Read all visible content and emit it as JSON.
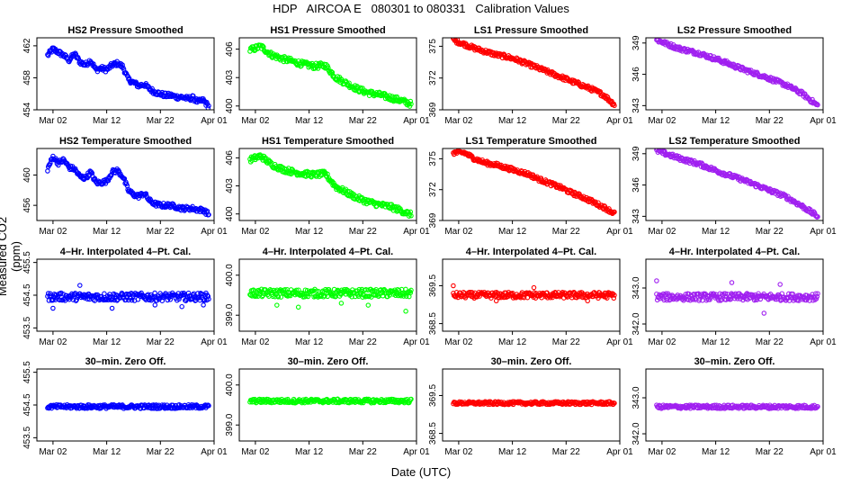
{
  "page": {
    "title": "HDP   AIRCOA E   080301 to 080331   Calibration Values",
    "xlabel": "Date (UTC)",
    "ylabel": "Measured CO2 (ppm)"
  },
  "colors": {
    "HS2": "#0000ff",
    "HS1": "#00ff00",
    "LS1": "#ff0000",
    "LS2": "#a020f0"
  },
  "chart_data": [
    {
      "id": "p-r0-c0",
      "type": "scatter",
      "title": "HS2 Pressure Smoothed",
      "series_color": "#0000ff",
      "xlim": [
        -2,
        31
      ],
      "x_ticks": [
        1,
        11,
        21,
        31
      ],
      "x_tick_labels": [
        "Mar 02",
        "Mar 12",
        "Mar 22",
        "Apr 01"
      ],
      "ylim": [
        454,
        463
      ],
      "y_ticks": [
        454,
        458,
        462
      ],
      "y_tick_labels": [
        "454",
        "458",
        "462"
      ],
      "profile": [
        [
          0,
          460.8
        ],
        [
          1,
          461.6
        ],
        [
          2,
          461.2
        ],
        [
          3,
          460.8
        ],
        [
          4,
          460.2
        ],
        [
          5,
          461.0
        ],
        [
          6,
          460.0
        ],
        [
          7,
          459.6
        ],
        [
          8,
          460.2
        ],
        [
          9,
          459.0
        ],
        [
          10,
          459.2
        ],
        [
          11,
          459.0
        ],
        [
          12,
          459.6
        ],
        [
          13,
          459.8
        ],
        [
          14,
          459.4
        ],
        [
          15,
          457.8
        ],
        [
          16,
          457.4
        ],
        [
          17,
          457.0
        ],
        [
          18,
          457.2
        ],
        [
          19,
          456.6
        ],
        [
          20,
          456.2
        ],
        [
          21,
          456.0
        ],
        [
          22,
          455.8
        ],
        [
          23,
          455.8
        ],
        [
          24,
          455.6
        ],
        [
          25,
          455.6
        ],
        [
          26,
          455.4
        ],
        [
          27,
          455.5
        ],
        [
          28,
          455.0
        ],
        [
          29,
          455.2
        ],
        [
          30,
          454.4
        ]
      ],
      "jitter": 0.3,
      "outliers": []
    },
    {
      "id": "p-r0-c1",
      "type": "scatter",
      "title": "HS1 Pressure Smoothed",
      "series_color": "#00ff00",
      "xlim": [
        -2,
        31
      ],
      "x_ticks": [
        1,
        11,
        21,
        31
      ],
      "x_tick_labels": [
        "Mar 02",
        "Mar 12",
        "Mar 22",
        "Apr 01"
      ],
      "ylim": [
        399.6,
        407.2
      ],
      "y_ticks": [
        400,
        403,
        406
      ],
      "y_tick_labels": [
        "400",
        "403",
        "406"
      ],
      "profile": [
        [
          0,
          405.9
        ],
        [
          2,
          406.3
        ],
        [
          4,
          405.4
        ],
        [
          6,
          405.0
        ],
        [
          8,
          404.7
        ],
        [
          10,
          404.4
        ],
        [
          12,
          404.2
        ],
        [
          14,
          404.3
        ],
        [
          16,
          403.0
        ],
        [
          18,
          402.4
        ],
        [
          20,
          401.8
        ],
        [
          22,
          401.4
        ],
        [
          24,
          401.2
        ],
        [
          26,
          400.9
        ],
        [
          28,
          400.6
        ],
        [
          30,
          400.2
        ]
      ],
      "jitter": 0.3,
      "outliers": []
    },
    {
      "id": "p-r0-c2",
      "type": "scatter",
      "title": "LS1 Pressure Smoothed",
      "series_color": "#ff0000",
      "xlim": [
        -2,
        31
      ],
      "x_ticks": [
        1,
        11,
        21,
        31
      ],
      "x_tick_labels": [
        "Mar 02",
        "Mar 12",
        "Mar 22",
        "Apr 01"
      ],
      "ylim": [
        369,
        375.8
      ],
      "y_ticks": [
        369,
        372,
        375
      ],
      "y_tick_labels": [
        "369",
        "372",
        "375"
      ],
      "profile": [
        [
          0,
          375.6
        ],
        [
          2,
          375.2
        ],
        [
          4,
          374.8
        ],
        [
          6,
          374.5
        ],
        [
          8,
          374.2
        ],
        [
          10,
          374.0
        ],
        [
          12,
          373.7
        ],
        [
          14,
          373.3
        ],
        [
          16,
          372.9
        ],
        [
          18,
          372.5
        ],
        [
          20,
          372.1
        ],
        [
          22,
          371.7
        ],
        [
          24,
          371.3
        ],
        [
          26,
          370.9
        ],
        [
          28,
          370.4
        ],
        [
          30,
          369.5
        ]
      ],
      "jitter": 0.2,
      "outliers": []
    },
    {
      "id": "p-r0-c3",
      "type": "scatter",
      "title": "LS2 Pressure Smoothed",
      "series_color": "#a020f0",
      "xlim": [
        -2,
        31
      ],
      "x_ticks": [
        1,
        11,
        21,
        31
      ],
      "x_tick_labels": [
        "Mar 02",
        "Mar 12",
        "Mar 22",
        "Apr 01"
      ],
      "ylim": [
        342.6,
        349.5
      ],
      "y_ticks": [
        343,
        346,
        349
      ],
      "y_tick_labels": [
        "343",
        "346",
        "349"
      ],
      "profile": [
        [
          0,
          349.3
        ],
        [
          4,
          348.5
        ],
        [
          8,
          348.0
        ],
        [
          12,
          347.3
        ],
        [
          16,
          346.5
        ],
        [
          20,
          345.8
        ],
        [
          24,
          345.0
        ],
        [
          27,
          344.2
        ],
        [
          30,
          343.0
        ]
      ],
      "jitter": 0.2,
      "outliers": []
    },
    {
      "id": "p-r1-c0",
      "type": "scatter",
      "title": "HS2 Temperature Smoothed",
      "series_color": "#0000ff",
      "xlim": [
        -2,
        31
      ],
      "x_ticks": [
        1,
        11,
        21,
        31
      ],
      "x_tick_labels": [
        "Mar 02",
        "Mar 12",
        "Mar 22",
        "Apr 01"
      ],
      "ylim": [
        454,
        463.5
      ],
      "y_ticks": [
        456,
        460
      ],
      "y_tick_labels": [
        "456",
        "460"
      ],
      "profile": [
        [
          0,
          460.8
        ],
        [
          1,
          462.4
        ],
        [
          2,
          461.6
        ],
        [
          3,
          462.0
        ],
        [
          4,
          461.0
        ],
        [
          5,
          460.8
        ],
        [
          6,
          459.8
        ],
        [
          7,
          459.6
        ],
        [
          8,
          460.4
        ],
        [
          9,
          459.0
        ],
        [
          10,
          459.0
        ],
        [
          11,
          459.2
        ],
        [
          12,
          460.4
        ],
        [
          13,
          460.6
        ],
        [
          14,
          459.8
        ],
        [
          15,
          458.0
        ],
        [
          16,
          457.4
        ],
        [
          17,
          457.2
        ],
        [
          18,
          457.6
        ],
        [
          19,
          456.6
        ],
        [
          20,
          456.2
        ],
        [
          21,
          456.0
        ],
        [
          22,
          456.0
        ],
        [
          23,
          456.0
        ],
        [
          24,
          455.8
        ],
        [
          25,
          455.6
        ],
        [
          26,
          455.6
        ],
        [
          27,
          455.6
        ],
        [
          28,
          455.4
        ],
        [
          29,
          455.4
        ],
        [
          30,
          454.8
        ]
      ],
      "jitter": 0.3,
      "outliers": []
    },
    {
      "id": "p-r1-c1",
      "type": "scatter",
      "title": "HS1 Temperature Smoothed",
      "series_color": "#00ff00",
      "xlim": [
        -2,
        31
      ],
      "x_ticks": [
        1,
        11,
        21,
        31
      ],
      "x_tick_labels": [
        "Mar 02",
        "Mar 12",
        "Mar 22",
        "Apr 01"
      ],
      "ylim": [
        399.3,
        407
      ],
      "y_ticks": [
        400,
        403,
        406
      ],
      "y_tick_labels": [
        "400",
        "403",
        "406"
      ],
      "profile": [
        [
          0,
          405.8
        ],
        [
          2,
          406.2
        ],
        [
          4,
          405.3
        ],
        [
          6,
          404.8
        ],
        [
          8,
          404.5
        ],
        [
          10,
          404.3
        ],
        [
          12,
          404.2
        ],
        [
          14,
          404.3
        ],
        [
          16,
          402.9
        ],
        [
          18,
          402.3
        ],
        [
          20,
          401.7
        ],
        [
          22,
          401.3
        ],
        [
          24,
          401.0
        ],
        [
          26,
          400.8
        ],
        [
          28,
          400.4
        ],
        [
          30,
          399.9
        ]
      ],
      "jitter": 0.3,
      "outliers": []
    },
    {
      "id": "p-r1-c2",
      "type": "scatter",
      "title": "LS1 Temperature Smoothed",
      "series_color": "#ff0000",
      "xlim": [
        -2,
        31
      ],
      "x_ticks": [
        1,
        11,
        21,
        31
      ],
      "x_tick_labels": [
        "Mar 02",
        "Mar 12",
        "Mar 22",
        "Apr 01"
      ],
      "ylim": [
        369,
        376
      ],
      "y_ticks": [
        369,
        372,
        375
      ],
      "y_tick_labels": [
        "369",
        "372",
        "375"
      ],
      "profile": [
        [
          0,
          375.6
        ],
        [
          2,
          375.6
        ],
        [
          4,
          375.0
        ],
        [
          6,
          374.6
        ],
        [
          8,
          374.4
        ],
        [
          10,
          374.1
        ],
        [
          12,
          373.8
        ],
        [
          14,
          373.5
        ],
        [
          16,
          373.0
        ],
        [
          18,
          372.6
        ],
        [
          20,
          372.2
        ],
        [
          22,
          371.7
        ],
        [
          24,
          371.3
        ],
        [
          26,
          370.8
        ],
        [
          28,
          370.3
        ],
        [
          30,
          369.7
        ]
      ],
      "jitter": 0.2,
      "outliers": []
    },
    {
      "id": "p-r1-c3",
      "type": "scatter",
      "title": "LS2 Temperature Smoothed",
      "series_color": "#a020f0",
      "xlim": [
        -2,
        31
      ],
      "x_ticks": [
        1,
        11,
        21,
        31
      ],
      "x_tick_labels": [
        "Mar 02",
        "Mar 12",
        "Mar 22",
        "Apr 01"
      ],
      "ylim": [
        342.6,
        349.5
      ],
      "y_ticks": [
        343,
        346,
        349
      ],
      "y_tick_labels": [
        "343",
        "346",
        "349"
      ],
      "profile": [
        [
          0,
          349.3
        ],
        [
          4,
          348.6
        ],
        [
          8,
          348.0
        ],
        [
          12,
          347.2
        ],
        [
          16,
          346.5
        ],
        [
          20,
          345.7
        ],
        [
          24,
          344.9
        ],
        [
          27,
          344.0
        ],
        [
          30,
          343.0
        ]
      ],
      "jitter": 0.2,
      "outliers": []
    },
    {
      "id": "p-r2-c0",
      "type": "scatter",
      "title": "4–Hr. Interpolated 4–Pt. Cal.",
      "series_color": "#0000ff",
      "xlim": [
        -2,
        31
      ],
      "x_ticks": [
        1,
        11,
        21,
        31
      ],
      "x_tick_labels": [
        "Mar 02",
        "Mar 12",
        "Mar 22",
        "Apr 01"
      ],
      "ylim": [
        453.4,
        455.6
      ],
      "y_ticks": [
        453.5,
        454.5,
        455.5
      ],
      "y_tick_labels": [
        "453.5",
        "454.5",
        "455.5"
      ],
      "profile": [
        [
          0,
          454.45
        ],
        [
          30,
          454.45
        ]
      ],
      "jitter": 0.12,
      "outliers": [
        [
          1,
          454.1
        ],
        [
          6,
          454.8
        ],
        [
          12,
          454.1
        ],
        [
          20,
          454.2
        ],
        [
          25,
          454.15
        ],
        [
          29,
          454.2
        ]
      ]
    },
    {
      "id": "p-r2-c1",
      "type": "scatter",
      "title": "4–Hr. Interpolated 4–Pt. Cal.",
      "series_color": "#00ff00",
      "xlim": [
        -2,
        31
      ],
      "x_ticks": [
        1,
        11,
        21,
        31
      ],
      "x_tick_labels": [
        "Mar 02",
        "Mar 12",
        "Mar 22",
        "Apr 01"
      ],
      "ylim": [
        398.6,
        400.4
      ],
      "y_ticks": [
        399,
        400
      ],
      "y_tick_labels": [
        "399.0",
        "400.0"
      ],
      "profile": [
        [
          0,
          399.55
        ],
        [
          30,
          399.55
        ]
      ],
      "jitter": 0.1,
      "outliers": [
        [
          5,
          399.25
        ],
        [
          9,
          399.2
        ],
        [
          17,
          399.3
        ],
        [
          22,
          399.25
        ],
        [
          29,
          399.1
        ]
      ]
    },
    {
      "id": "p-r2-c2",
      "type": "scatter",
      "title": "4–Hr. Interpolated 4–Pt. Cal.",
      "series_color": "#ff0000",
      "xlim": [
        -2,
        31
      ],
      "x_ticks": [
        1,
        11,
        21,
        31
      ],
      "x_tick_labels": [
        "Mar 02",
        "Mar 12",
        "Mar 22",
        "Apr 01"
      ],
      "ylim": [
        368.3,
        370.2
      ],
      "y_ticks": [
        368.5,
        369.5
      ],
      "y_tick_labels": [
        "368.5",
        "369.5"
      ],
      "profile": [
        [
          0,
          369.25
        ],
        [
          30,
          369.25
        ]
      ],
      "jitter": 0.08,
      "outliers": [
        [
          0,
          369.5
        ],
        [
          8,
          369.1
        ],
        [
          15,
          369.45
        ],
        [
          25,
          369.1
        ]
      ]
    },
    {
      "id": "p-r2-c3",
      "type": "scatter",
      "title": "4–Hr. Interpolated 4–Pt. Cal.",
      "series_color": "#a020f0",
      "xlim": [
        -2,
        31
      ],
      "x_ticks": [
        1,
        11,
        21,
        31
      ],
      "x_tick_labels": [
        "Mar 02",
        "Mar 12",
        "Mar 22",
        "Apr 01"
      ],
      "ylim": [
        341.8,
        343.8
      ],
      "y_ticks": [
        342,
        343
      ],
      "y_tick_labels": [
        "342.0",
        "343.0"
      ],
      "profile": [
        [
          0,
          342.75
        ],
        [
          30,
          342.75
        ]
      ],
      "jitter": 0.1,
      "outliers": [
        [
          0,
          343.2
        ],
        [
          14,
          343.15
        ],
        [
          20,
          342.3
        ],
        [
          23,
          343.1
        ]
      ]
    },
    {
      "id": "p-r3-c0",
      "type": "scatter",
      "title": "30–min. Zero Off.",
      "series_color": "#0000ff",
      "xlim": [
        -2,
        31
      ],
      "x_ticks": [
        1,
        11,
        21,
        31
      ],
      "x_tick_labels": [
        "Mar 02",
        "Mar 12",
        "Mar 22",
        "Apr 01"
      ],
      "ylim": [
        453.4,
        455.6
      ],
      "y_ticks": [
        453.5,
        454.5,
        455.5
      ],
      "y_tick_labels": [
        "453.5",
        "454.5",
        "455.5"
      ],
      "profile": [
        [
          0,
          454.45
        ],
        [
          30,
          454.45
        ]
      ],
      "jitter": 0.06,
      "outliers": []
    },
    {
      "id": "p-r3-c1",
      "type": "scatter",
      "title": "30–min. Zero Off.",
      "series_color": "#00ff00",
      "xlim": [
        -2,
        31
      ],
      "x_ticks": [
        1,
        11,
        21,
        31
      ],
      "x_tick_labels": [
        "Mar 02",
        "Mar 12",
        "Mar 22",
        "Apr 01"
      ],
      "ylim": [
        398.6,
        400.4
      ],
      "y_ticks": [
        399,
        400
      ],
      "y_tick_labels": [
        "399.0",
        "400.0"
      ],
      "profile": [
        [
          0,
          399.6
        ],
        [
          30,
          399.6
        ]
      ],
      "jitter": 0.05,
      "outliers": []
    },
    {
      "id": "p-r3-c2",
      "type": "scatter",
      "title": "30–min. Zero Off.",
      "series_color": "#ff0000",
      "xlim": [
        -2,
        31
      ],
      "x_ticks": [
        1,
        11,
        21,
        31
      ],
      "x_tick_labels": [
        "Mar 02",
        "Mar 12",
        "Mar 22",
        "Apr 01"
      ],
      "ylim": [
        368.3,
        370.2
      ],
      "y_ticks": [
        368.5,
        369.5
      ],
      "y_tick_labels": [
        "368.5",
        "369.5"
      ],
      "profile": [
        [
          0,
          369.3
        ],
        [
          30,
          369.3
        ]
      ],
      "jitter": 0.04,
      "outliers": []
    },
    {
      "id": "p-r3-c3",
      "type": "scatter",
      "title": "30–min. Zero Off.",
      "series_color": "#a020f0",
      "xlim": [
        -2,
        31
      ],
      "x_ticks": [
        1,
        11,
        21,
        31
      ],
      "x_tick_labels": [
        "Mar 02",
        "Mar 12",
        "Mar 22",
        "Apr 01"
      ],
      "ylim": [
        341.8,
        343.8
      ],
      "y_ticks": [
        342,
        343
      ],
      "y_tick_labels": [
        "342.0",
        "343.0"
      ],
      "profile": [
        [
          0,
          342.75
        ],
        [
          30,
          342.75
        ]
      ],
      "jitter": 0.05,
      "outliers": []
    }
  ]
}
